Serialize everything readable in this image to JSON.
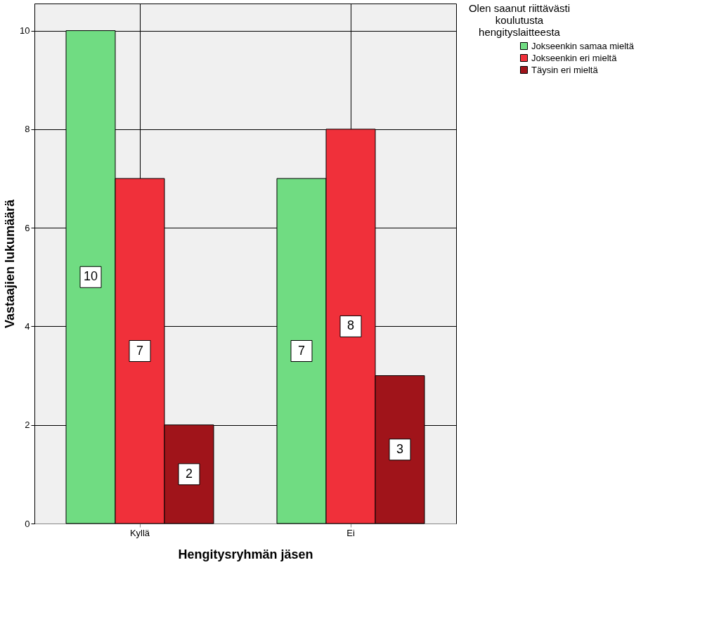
{
  "chart_data": {
    "type": "bar",
    "xlabel": "Hengitysryhmän jäsen",
    "ylabel": "Vastaajien lukumäärä",
    "legend_title": "Olen saanut riittävästi koulutusta hengityslaitteesta",
    "categories": [
      "Kyllä",
      "Ei"
    ],
    "series": [
      {
        "name": "Jokseenkin samaa mieltä",
        "color": "#70dc82",
        "values": [
          10,
          7
        ]
      },
      {
        "name": "Jokseenkin eri mieltä",
        "color": "#f0303a",
        "values": [
          7,
          8
        ]
      },
      {
        "name": "Täysin eri mieltä",
        "color": "#a0141a",
        "values": [
          2,
          3
        ]
      }
    ],
    "ylim": [
      0,
      10.55
    ],
    "yticks": [
      0,
      2,
      4,
      6,
      8,
      10
    ],
    "grid": true,
    "legend": "top right",
    "data_labels": true
  }
}
